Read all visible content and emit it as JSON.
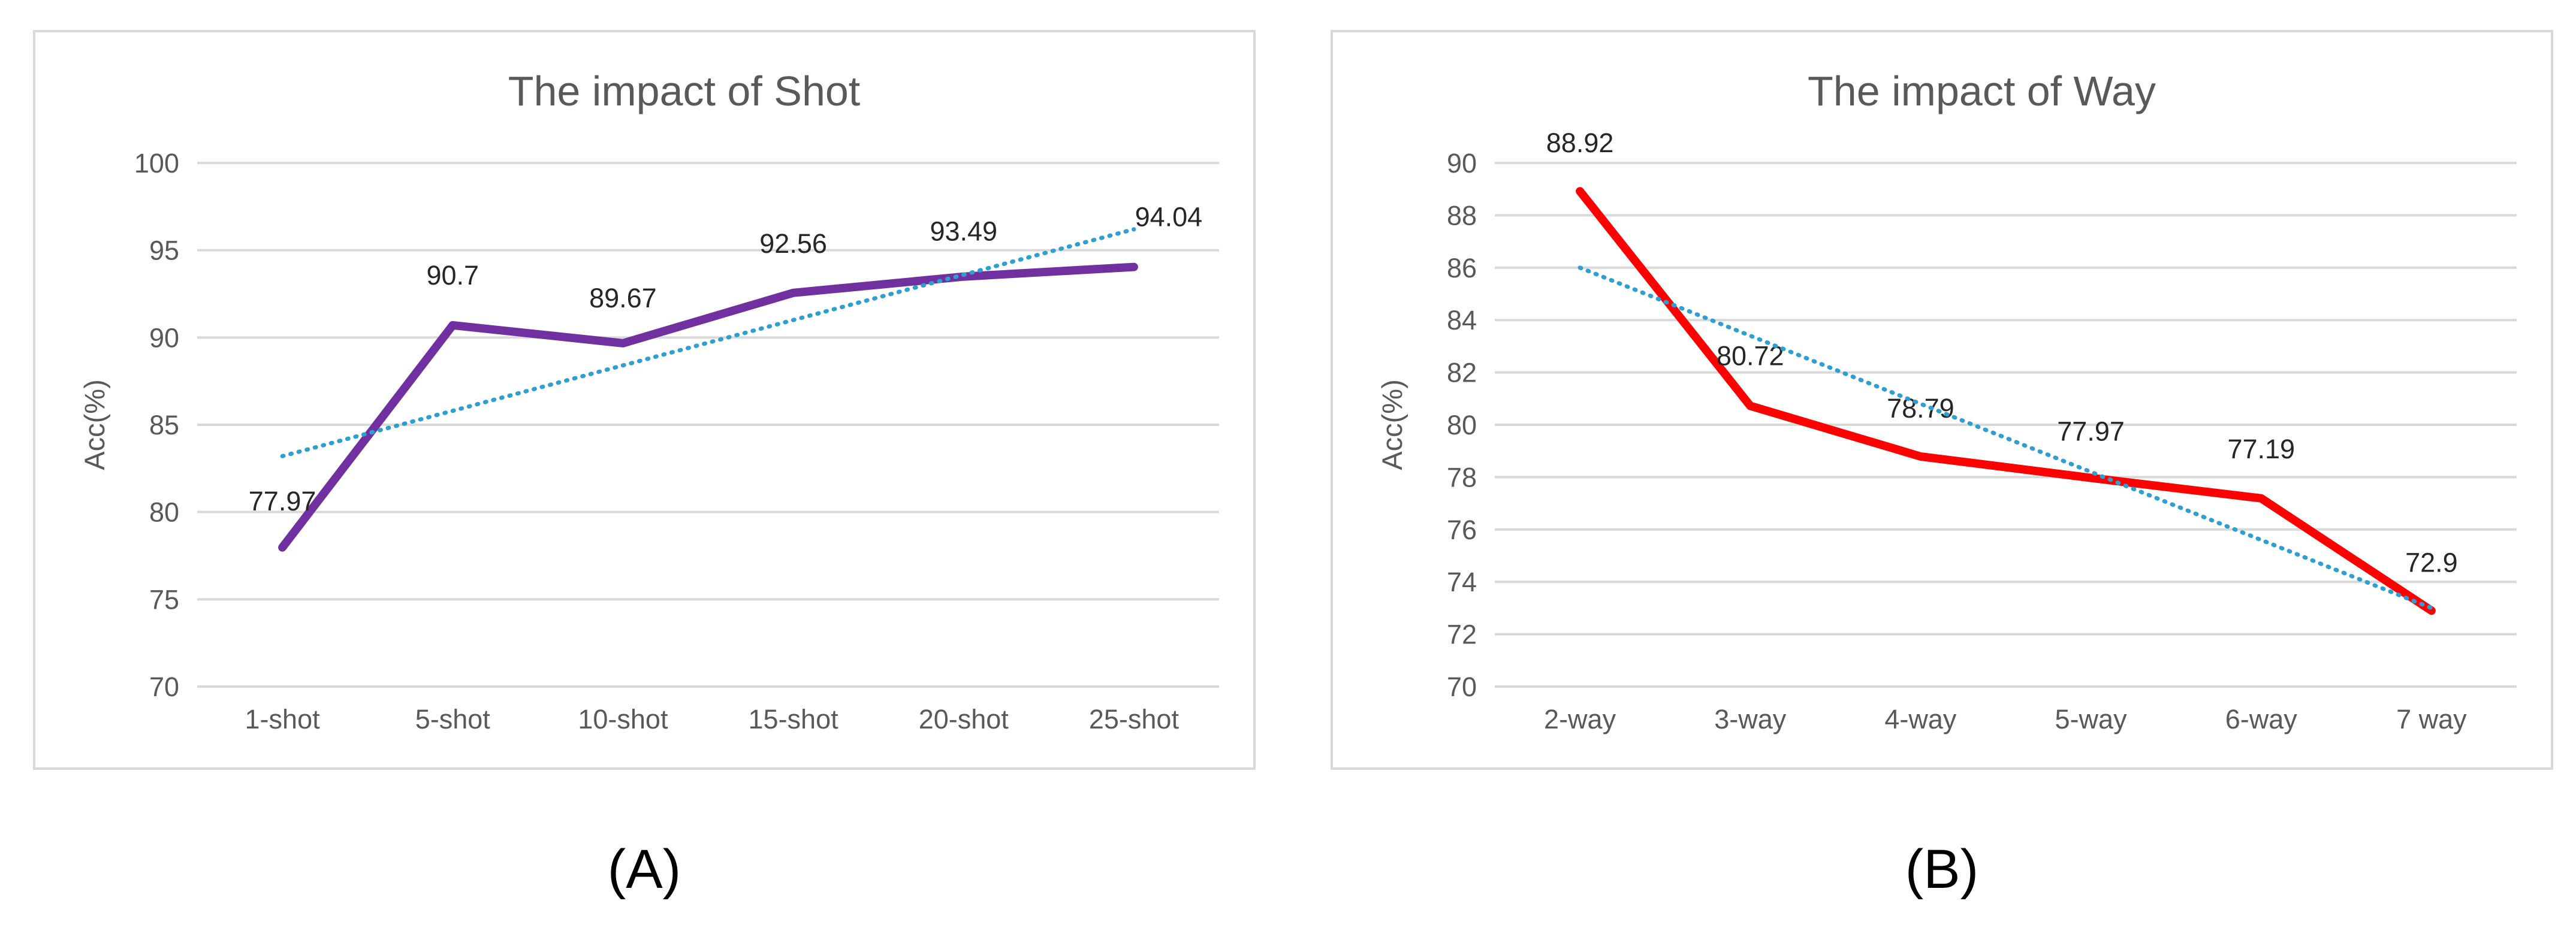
{
  "chart_data": [
    {
      "type": "line",
      "title": "The impact of Shot",
      "xlabel": "",
      "ylabel": "Acc(%)",
      "categories": [
        "1-shot",
        "5-shot",
        "10-shot",
        "15-shot",
        "20-shot",
        "25-shot"
      ],
      "series": [
        {
          "values": [
            77.97,
            90.7,
            89.67,
            92.56,
            93.49,
            94.04
          ],
          "color": "#7030a0",
          "style": "solid",
          "data_labels": [
            "77.97",
            "90.7",
            "89.67",
            "92.56",
            "93.49",
            "94.04"
          ]
        },
        {
          "values": [
            83.2,
            85.8,
            88.4,
            91.0,
            93.6,
            96.2
          ],
          "color": "#2e9fcf",
          "style": "dotted",
          "role": "linear trendline"
        }
      ],
      "ylim": [
        70,
        100
      ],
      "yticks": [
        70,
        75,
        80,
        85,
        90,
        95,
        100
      ],
      "grid": true,
      "legend": "none"
    },
    {
      "type": "line",
      "title": "The impact of Way",
      "xlabel": "",
      "ylabel": "Acc(%)",
      "categories": [
        "2-way",
        "3-way",
        "4-way",
        "5-way",
        "6-way",
        "7 way"
      ],
      "series": [
        {
          "values": [
            88.92,
            80.72,
            78.79,
            77.97,
            77.19,
            72.9
          ],
          "color": "#ff0000",
          "style": "solid",
          "data_labels": [
            "88.92",
            "80.72",
            "78.79",
            "77.97",
            "77.19",
            "72.9"
          ]
        },
        {
          "values": [
            86.0,
            83.4,
            80.8,
            78.2,
            75.6,
            73.0
          ],
          "color": "#2e9fcf",
          "style": "dotted",
          "role": "linear trendline"
        }
      ],
      "ylim": [
        70,
        90
      ],
      "yticks": [
        70,
        72,
        74,
        76,
        78,
        80,
        82,
        84,
        86,
        88,
        90
      ],
      "grid": true,
      "legend": "none"
    }
  ],
  "captions": [
    "(A)",
    "(B)"
  ]
}
